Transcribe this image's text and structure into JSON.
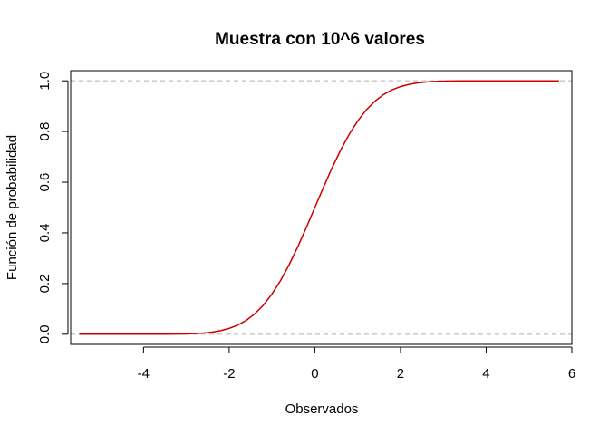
{
  "chart_data": {
    "type": "line",
    "title": "Muestra con 10^6 valores",
    "xlabel": "Observados",
    "ylabel": "Función de probabilidad",
    "xlim": [
      -5.7,
      6.0
    ],
    "ylim": [
      -0.04,
      1.04
    ],
    "x_ticks": [
      -4,
      -2,
      0,
      2,
      4,
      6
    ],
    "x_tick_labels": [
      "-4",
      "-2",
      "0",
      "2",
      "4",
      "6"
    ],
    "y_ticks": [
      0.0,
      0.2,
      0.4,
      0.6,
      0.8,
      1.0
    ],
    "y_tick_labels": [
      "0.0",
      "0.2",
      "0.4",
      "0.6",
      "0.8",
      "1.0"
    ],
    "reference_lines": [
      0,
      1
    ],
    "grid": false,
    "legend": "none",
    "colors": {
      "series": "#cc0000",
      "reference": "#b0b0b0",
      "axis": "#000000"
    },
    "series": [
      {
        "x": [
          -5.5,
          -4.5,
          -3.5,
          -3.0,
          -2.8,
          -2.6,
          -2.4,
          -2.2,
          -2.0,
          -1.8,
          -1.6,
          -1.4,
          -1.2,
          -1.0,
          -0.8,
          -0.6,
          -0.4,
          -0.2,
          0.0,
          0.2,
          0.4,
          0.6,
          0.8,
          1.0,
          1.2,
          1.4,
          1.6,
          1.8,
          2.0,
          2.2,
          2.4,
          2.6,
          2.8,
          3.0,
          3.5,
          4.5,
          5.7
        ],
        "values": [
          0.0,
          0.0,
          0.0002,
          0.0013,
          0.0026,
          0.0047,
          0.0082,
          0.0139,
          0.0228,
          0.0359,
          0.0548,
          0.0808,
          0.1151,
          0.1587,
          0.2119,
          0.2743,
          0.3446,
          0.4207,
          0.5,
          0.5793,
          0.6554,
          0.7257,
          0.7881,
          0.8413,
          0.8849,
          0.9192,
          0.9452,
          0.9641,
          0.9772,
          0.9861,
          0.9918,
          0.9953,
          0.9974,
          0.9987,
          0.9998,
          1.0,
          1.0
        ]
      }
    ]
  }
}
